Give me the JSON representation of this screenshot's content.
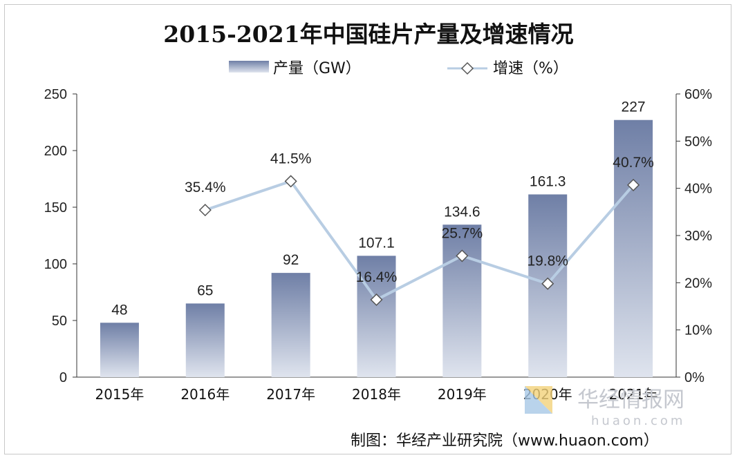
{
  "chart_data": {
    "type": "bar",
    "title": "2015-2021年中国硅片产量及增速情况",
    "categories": [
      "2015年",
      "2016年",
      "2017年",
      "2018年",
      "2019年",
      "2020年",
      "2021年"
    ],
    "series": [
      {
        "name": "产量（GW）",
        "type": "bar",
        "axis": "left",
        "values": [
          48,
          65,
          92,
          107.1,
          134.6,
          161.3,
          227
        ],
        "labels": [
          "48",
          "65",
          "92",
          "107.1",
          "134.6",
          "161.3",
          "227"
        ]
      },
      {
        "name": "增速（%）",
        "type": "line",
        "axis": "right",
        "values": [
          null,
          35.4,
          41.5,
          16.4,
          25.7,
          19.8,
          40.7
        ],
        "labels": [
          "",
          "35.4%",
          "41.5%",
          "16.4%",
          "25.7%",
          "19.8%",
          "40.7%"
        ]
      }
    ],
    "ylim_left": [
      0,
      250
    ],
    "yticks_left": [
      "0",
      "50",
      "100",
      "150",
      "200",
      "250"
    ],
    "ylim_right": [
      0,
      60
    ],
    "yticks_right": [
      "0%",
      "10%",
      "20%",
      "30%",
      "40%",
      "50%",
      "60%"
    ],
    "grid": false,
    "legend": "top-center",
    "colors": {
      "bar_top": "#6f7fa6",
      "bar_bottom": "#dfe4ee",
      "line": "#b8cde3",
      "marker_fill": "#ffffff",
      "marker_stroke": "#555555"
    }
  },
  "footer": {
    "source": "制图：华经产业研究院（www.huaon.com）",
    "watermark_cn": "华经情报网",
    "watermark_en": "huaon.com"
  }
}
